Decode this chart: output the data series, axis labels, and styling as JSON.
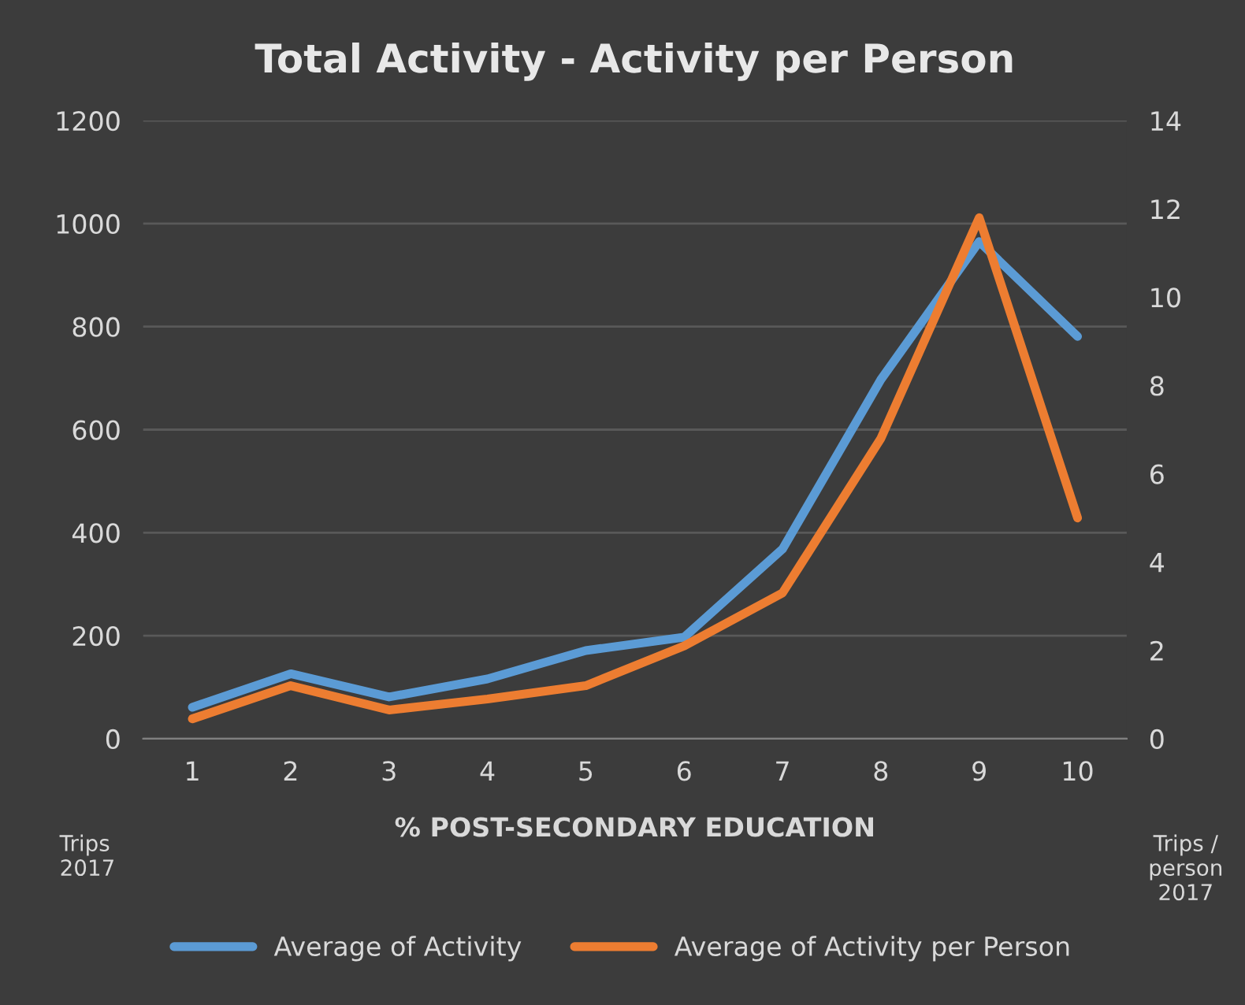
{
  "chart_data": {
    "type": "line",
    "title": "Total Activity - Activity per Person",
    "xlabel": "% POST-SECONDARY EDUCATION",
    "ylabel": "Trips\n2017",
    "y2label": "Trips /\nperson\n2017",
    "categories": [
      "1",
      "2",
      "3",
      "4",
      "5",
      "6",
      "7",
      "8",
      "9",
      "10"
    ],
    "series": [
      {
        "name": "Average of Activity",
        "color": "#5b9bd5",
        "values": [
          61,
          126,
          81,
          116,
          171,
          197,
          368,
          697,
          965,
          781
        ]
      },
      {
        "name": "Average of Activity per Person",
        "color": "#ed7d31",
        "axis": "y2",
        "values": [
          0.45,
          1.2,
          0.65,
          0.9,
          1.2,
          2.1,
          3.3,
          6.8,
          11.8,
          5.0
        ]
      }
    ],
    "ylim": [
      0,
      1200
    ],
    "yticks": [
      0,
      200,
      400,
      600,
      800,
      1000,
      1200
    ],
    "y2lim": [
      0,
      14
    ],
    "y2ticks": [
      0,
      2,
      4,
      6,
      8,
      10,
      12,
      14
    ],
    "grid": "y",
    "legend": "bottom",
    "marker": "none",
    "line_style": "solid"
  }
}
